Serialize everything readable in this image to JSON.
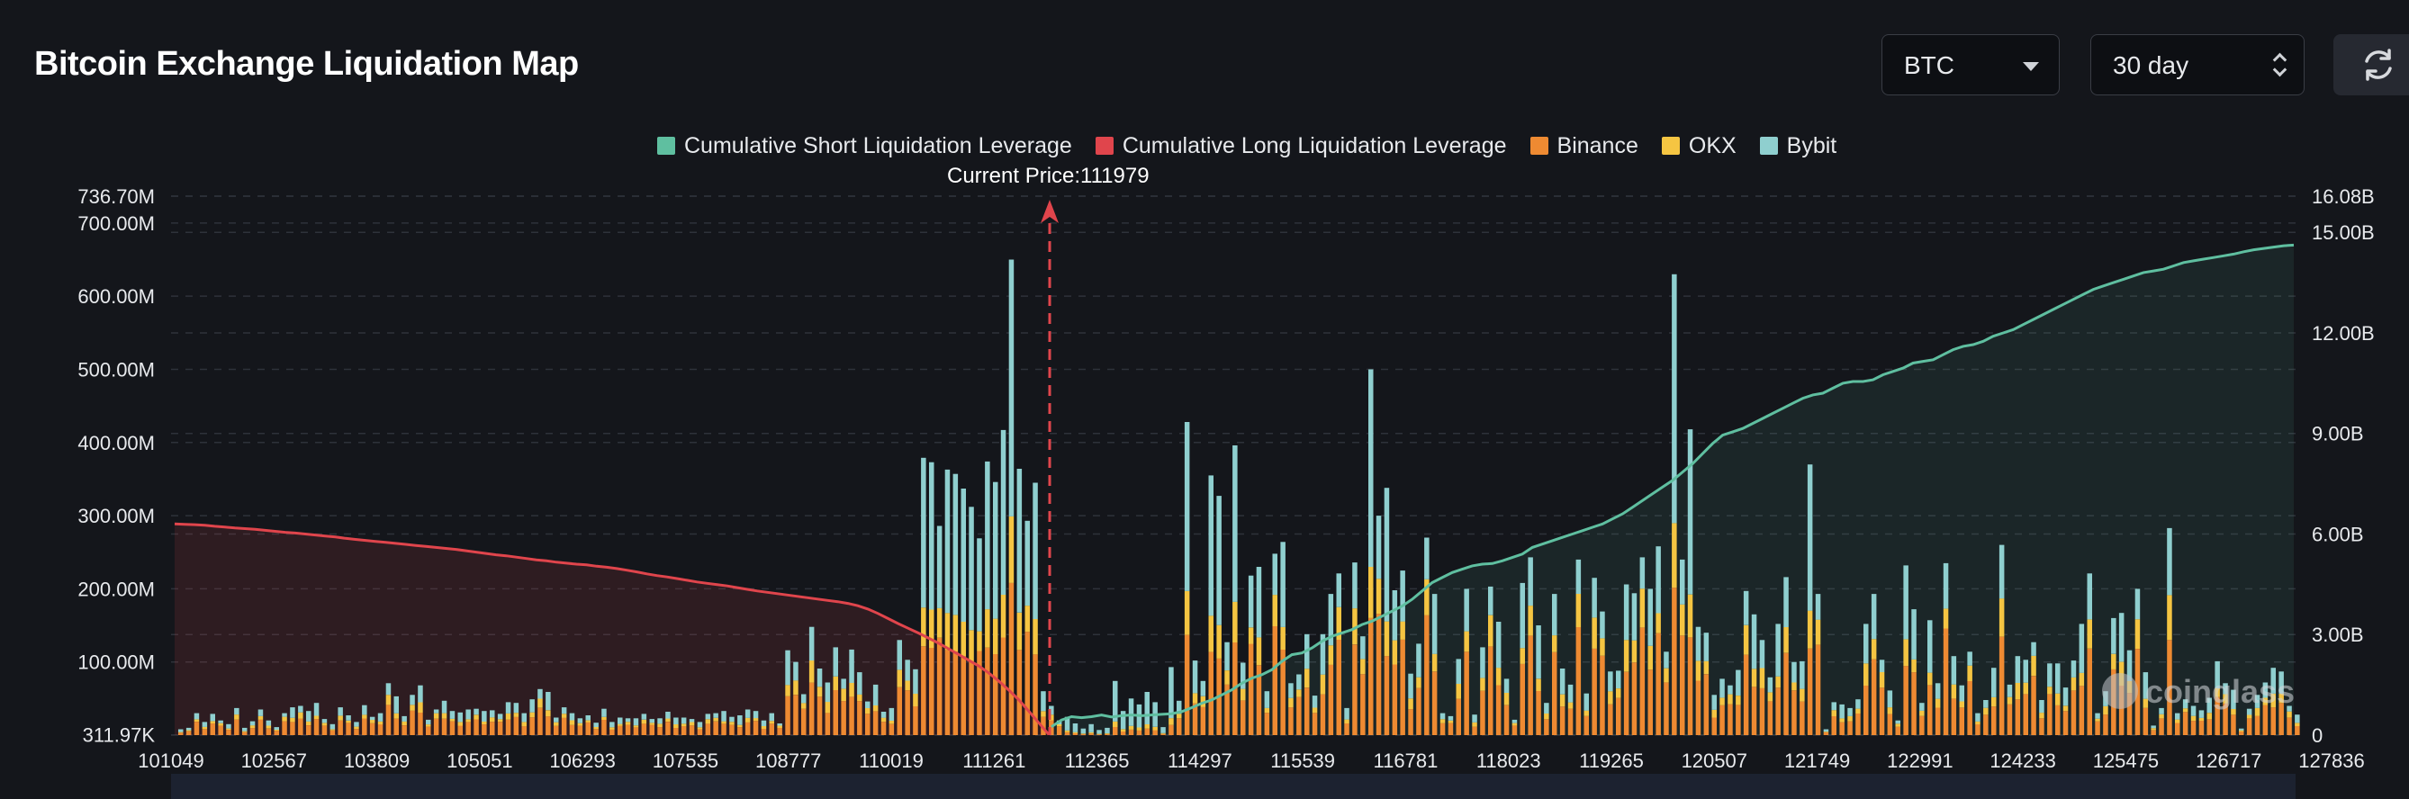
{
  "header": {
    "title": "Bitcoin Exchange Liquidation Map"
  },
  "controls": {
    "coin": "BTC",
    "range": "30 day"
  },
  "icons": {
    "refresh": "refresh-icon",
    "watermark": "coinglass-logo"
  },
  "watermark": {
    "text": "coinglass"
  },
  "colors": {
    "short": "#5fbfa0",
    "long": "#e0454c",
    "binance": "#ee8a32",
    "okx": "#f5c542",
    "bybit": "#8fcfcf"
  },
  "chart_data": {
    "type": "bar",
    "title": "Bitcoin Exchange Liquidation Map",
    "current_price_label": "Current Price:111979",
    "current_price": 111979,
    "x_ticks": [
      "101049",
      "102567",
      "103809",
      "105051",
      "106293",
      "107535",
      "108777",
      "110019",
      "111261",
      "112365",
      "114297",
      "115539",
      "116781",
      "118023",
      "119265",
      "120507",
      "121749",
      "122991",
      "124233",
      "125475",
      "126717",
      "127836"
    ],
    "ylim_left": [
      0,
      736.7
    ],
    "y_left_ticks": [
      "311.97K",
      "100.00M",
      "200.00M",
      "300.00M",
      "400.00M",
      "500.00M",
      "600.00M",
      "700.00M",
      "736.70M"
    ],
    "ylim_right": [
      0,
      16.08
    ],
    "y_right_ticks": [
      "0",
      "3.00B",
      "6.00B",
      "9.00B",
      "12.00B",
      "15.00B",
      "16.08B"
    ],
    "legend": [
      {
        "key": "short",
        "label": "Cumulative Short Liquidation Leverage"
      },
      {
        "key": "long",
        "label": "Cumulative Long Liquidation Leverage"
      },
      {
        "key": "binance",
        "label": "Binance"
      },
      {
        "key": "okx",
        "label": "OKX"
      },
      {
        "key": "bybit",
        "label": "Bybit"
      }
    ],
    "bar_units": "M USD (stacked: Binance, OKX, Bybit)",
    "bars_total": [
      8,
      10,
      30,
      18,
      29,
      20,
      15,
      37,
      10,
      19,
      35,
      20,
      11,
      30,
      38,
      40,
      33,
      44,
      22,
      15,
      38,
      27,
      18,
      41,
      25,
      30,
      71,
      53,
      26,
      55,
      68,
      21,
      35,
      47,
      33,
      31,
      35,
      36,
      33,
      34,
      29,
      45,
      44,
      30,
      49,
      63,
      59,
      24,
      38,
      30,
      23,
      27,
      17,
      36,
      18,
      24,
      23,
      23,
      29,
      22,
      23,
      32,
      24,
      24,
      22,
      18,
      29,
      30,
      33,
      25,
      27,
      35,
      33,
      20,
      30,
      16,
      116,
      100,
      56,
      148,
      91,
      72,
      120,
      77,
      117,
      86,
      46,
      69,
      32,
      37,
      130,
      103,
      90,
      379,
      373,
      286,
      363,
      357,
      337,
      312,
      269,
      374,
      346,
      417,
      650,
      364,
      293,
      345,
      60,
      40,
      20,
      25,
      16,
      9,
      15,
      7,
      10,
      74,
      33,
      50,
      42,
      59,
      45,
      11,
      93,
      47,
      428,
      102,
      74,
      355,
      327,
      127,
      396,
      99,
      218,
      230,
      60,
      248,
      264,
      71,
      83,
      138,
      54,
      138,
      193,
      221,
      37,
      236,
      135,
      500,
      300,
      338,
      198,
      225,
      84,
      125,
      270,
      193,
      30,
      26,
      104,
      200,
      28,
      120,
      203,
      155,
      77,
      21,
      208,
      243,
      150,
      44,
      193,
      91,
      69,
      240,
      57,
      215,
      169,
      87,
      88,
      206,
      194,
      243,
      200,
      258,
      114,
      630,
      240,
      418,
      148,
      140,
      55,
      77,
      68,
      89,
      197,
      165,
      130,
      79,
      152,
      216,
      100,
      101,
      370,
      193,
      8,
      45,
      42,
      37,
      49,
      152,
      193,
      103,
      61,
      20,
      232,
      172,
      44,
      157,
      71,
      235,
      108,
      68,
      114,
      30,
      48,
      92,
      260,
      69,
      108,
      103,
      127,
      48,
      98,
      98,
      65,
      102,
      152,
      221,
      30,
      60,
      160,
      167,
      116,
      200,
      86,
      13,
      37,
      283,
      30,
      49,
      40,
      34,
      51,
      101,
      71,
      62,
      9,
      36,
      55,
      72,
      92,
      87,
      40,
      28
    ],
    "cum_long_B": [
      6.3,
      6.29,
      6.28,
      6.26,
      6.23,
      6.21,
      6.18,
      6.16,
      6.14,
      6.11,
      6.08,
      6.05,
      6.03,
      6.0,
      5.97,
      5.94,
      5.91,
      5.87,
      5.84,
      5.81,
      5.78,
      5.75,
      5.72,
      5.69,
      5.66,
      5.63,
      5.6,
      5.57,
      5.54,
      5.5,
      5.46,
      5.42,
      5.38,
      5.35,
      5.31,
      5.27,
      5.23,
      5.2,
      5.16,
      5.13,
      5.1,
      5.08,
      5.04,
      5.01,
      4.97,
      4.92,
      4.87,
      4.81,
      4.76,
      4.72,
      4.67,
      4.62,
      4.57,
      4.53,
      4.49,
      4.45,
      4.4,
      4.35,
      4.3,
      4.26,
      4.22,
      4.18,
      4.14,
      4.1,
      4.06,
      4.02,
      3.98,
      3.93,
      3.86,
      3.76,
      3.63,
      3.48,
      3.33,
      3.19,
      3.05,
      2.9,
      2.75,
      2.58,
      2.41,
      2.24,
      2.07,
      1.86,
      1.62,
      1.35,
      1.06,
      0.72,
      0.37,
      0.02
    ],
    "cum_short_B": [
      0.25,
      0.45,
      0.55,
      0.52,
      0.55,
      0.6,
      0.54,
      0.58,
      0.6,
      0.58,
      0.6,
      0.62,
      0.64,
      0.7,
      0.82,
      0.95,
      1.05,
      1.2,
      1.35,
      1.55,
      1.7,
      1.8,
      1.95,
      2.2,
      2.4,
      2.45,
      2.6,
      2.8,
      2.95,
      3.05,
      3.15,
      3.3,
      3.4,
      3.55,
      3.7,
      3.85,
      4.05,
      4.3,
      4.55,
      4.7,
      4.85,
      4.95,
      5.05,
      5.1,
      5.12,
      5.2,
      5.3,
      5.4,
      5.6,
      5.7,
      5.8,
      5.9,
      6.0,
      6.1,
      6.2,
      6.3,
      6.45,
      6.6,
      6.8,
      7.0,
      7.2,
      7.4,
      7.6,
      7.85,
      8.1,
      8.4,
      8.7,
      8.95,
      9.05,
      9.15,
      9.3,
      9.45,
      9.6,
      9.75,
      9.9,
      10.05,
      10.15,
      10.2,
      10.35,
      10.5,
      10.55,
      10.55,
      10.6,
      10.75,
      10.85,
      10.95,
      11.1,
      11.15,
      11.2,
      11.35,
      11.5,
      11.6,
      11.65,
      11.75,
      11.9,
      12.0,
      12.1,
      12.25,
      12.4,
      12.55,
      12.7,
      12.85,
      13.0,
      13.15,
      13.3,
      13.4,
      13.5,
      13.6,
      13.7,
      13.8,
      13.85,
      13.9,
      14.0,
      14.1,
      14.15,
      14.2,
      14.25,
      14.3,
      14.35,
      14.42,
      14.48,
      14.52,
      14.56,
      14.6,
      14.62
    ]
  }
}
